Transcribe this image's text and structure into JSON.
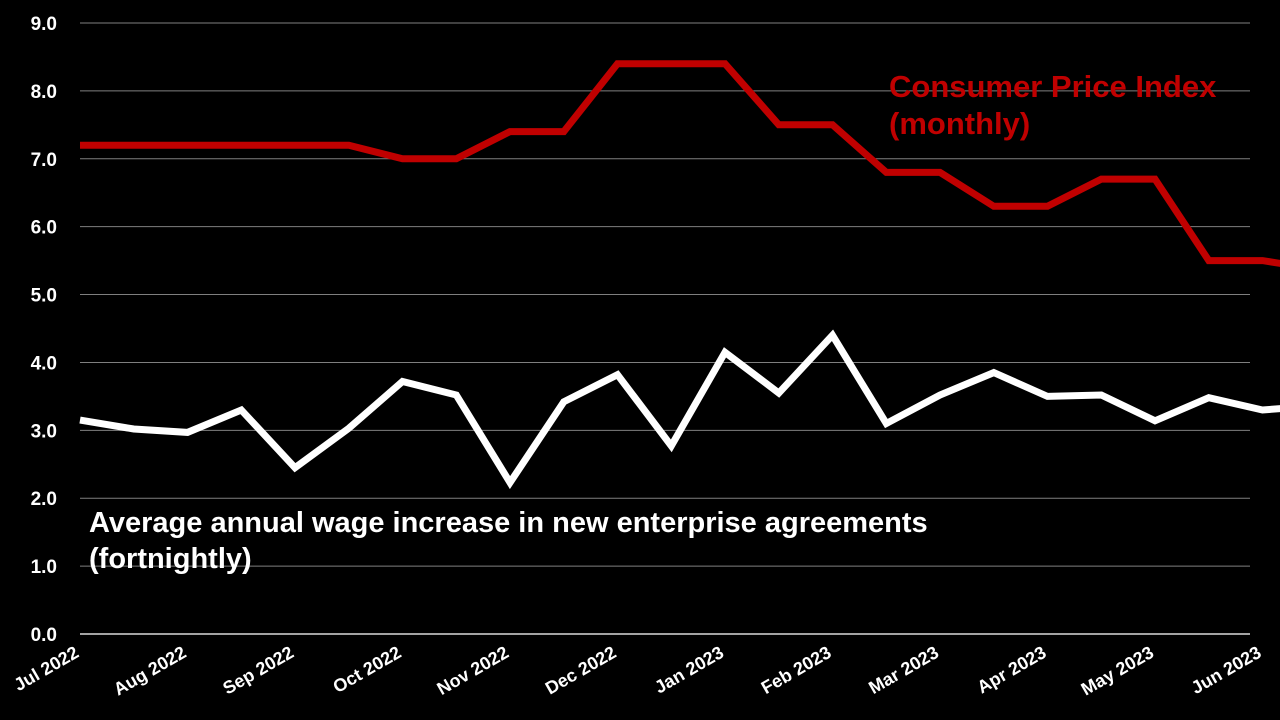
{
  "chart_data": {
    "type": "line",
    "categories": [
      "Jul 2022",
      "Aug 2022",
      "Sep 2022",
      "Oct 2022",
      "Nov 2022",
      "Dec 2022",
      "Jan 2023",
      "Feb 2023",
      "Mar 2023",
      "Apr 2023",
      "May 2023",
      "Jun 2023"
    ],
    "ylim": [
      0,
      9
    ],
    "yticks": [
      "0.0",
      "1.0",
      "2.0",
      "3.0",
      "4.0",
      "5.0",
      "6.0",
      "7.0",
      "8.0",
      "9.0"
    ],
    "grid": true,
    "series": [
      {
        "name": "Consumer Price Index (monthly)",
        "label_lines": [
          "Consumer Price Index",
          "(monthly)"
        ],
        "color": "#c00000",
        "x": [
          0,
          0.5,
          1,
          1.5,
          2,
          2.5,
          3,
          3.5,
          4,
          4.5,
          5,
          5.5,
          6,
          6.5,
          7,
          7.5,
          8,
          8.5,
          9,
          9.5,
          10,
          10.5,
          11,
          11.4
        ],
        "values": [
          7.2,
          7.2,
          7.2,
          7.2,
          7.2,
          7.2,
          7.0,
          7.0,
          7.4,
          7.4,
          8.4,
          8.4,
          8.4,
          7.5,
          7.5,
          6.8,
          6.8,
          6.3,
          6.3,
          6.7,
          6.7,
          5.5,
          5.5,
          5.4
        ]
      },
      {
        "name": "Average annual wage increase in new enterprise agreements (fortnightly)",
        "label_lines": [
          "Average annual wage increase in new enterprise agreements",
          "(fortnightly)"
        ],
        "color": "#ffffff",
        "x": [
          0,
          0.5,
          1,
          1.5,
          2,
          2.5,
          3,
          3.5,
          4,
          4.5,
          5,
          5.5,
          6,
          6.5,
          7,
          7.5,
          8,
          8.5,
          9,
          9.5,
          10,
          10.5,
          11,
          11.4
        ],
        "values": [
          3.15,
          3.02,
          2.97,
          3.3,
          2.45,
          3.03,
          3.72,
          3.52,
          2.23,
          3.42,
          3.82,
          2.77,
          4.15,
          3.55,
          4.4,
          3.1,
          3.52,
          3.85,
          3.5,
          3.52,
          3.14,
          3.48,
          3.3,
          3.35
        ]
      }
    ]
  }
}
